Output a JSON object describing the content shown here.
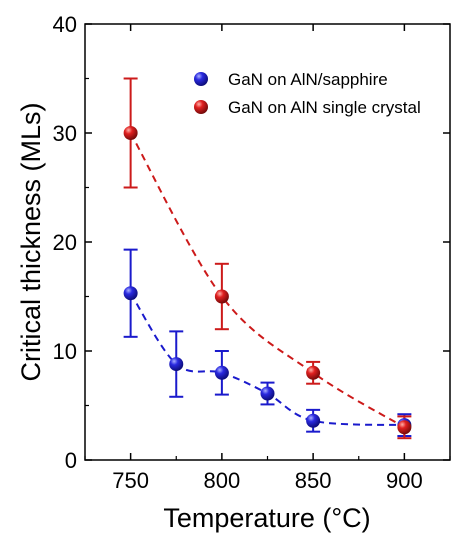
{
  "chart_data": {
    "type": "scatter",
    "title": "",
    "xlabel": "Temperature (°C)",
    "ylabel": "Critical thickness (MLs)",
    "xlim": [
      725,
      925
    ],
    "ylim": [
      0,
      40
    ],
    "xticks": [
      750,
      800,
      850,
      900
    ],
    "yticks": [
      0,
      10,
      20,
      30,
      40
    ],
    "grid": false,
    "legend_position": "top-right",
    "series": [
      {
        "name": "GaN on AlN/sapphire",
        "color": "#1a1acc",
        "points": [
          {
            "x": 750,
            "y": 15.3,
            "err": 4.0
          },
          {
            "x": 775,
            "y": 8.8,
            "err": 3.0
          },
          {
            "x": 800,
            "y": 8.0,
            "err": 2.0
          },
          {
            "x": 825,
            "y": 6.1,
            "err": 1.0
          },
          {
            "x": 850,
            "y": 3.6,
            "err": 1.0
          },
          {
            "x": 900,
            "y": 3.2,
            "err": 1.0
          }
        ],
        "fit_line": "dashed"
      },
      {
        "name": "GaN on AlN single crystal",
        "color": "#cc1a1a",
        "points": [
          {
            "x": 750,
            "y": 30.0,
            "err": 5.0
          },
          {
            "x": 800,
            "y": 15.0,
            "err": 3.0
          },
          {
            "x": 850,
            "y": 8.0,
            "err": 1.0
          },
          {
            "x": 900,
            "y": 3.0,
            "err": 1.0
          }
        ],
        "fit_line": "dashed"
      }
    ]
  }
}
